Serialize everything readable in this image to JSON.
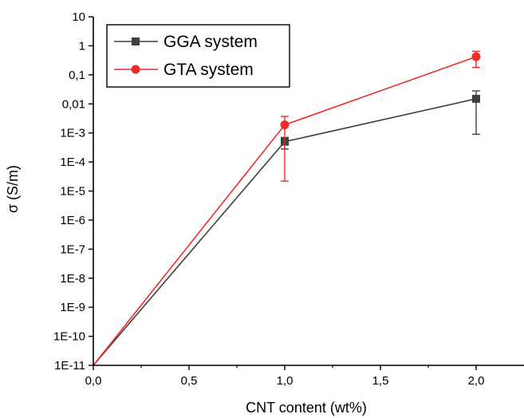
{
  "chart_data": {
    "type": "line",
    "title": "",
    "xlabel": "CNT content (wt%)",
    "ylabel": "σ (S/m)",
    "xlim": [
      0.0,
      2.25
    ],
    "ylim": [
      1e-11,
      10
    ],
    "yscale": "log",
    "x_ticks": [
      0.0,
      0.5,
      1.0,
      1.5,
      2.0
    ],
    "x_tick_labels": [
      "0,0",
      "0,5",
      "1,0",
      "1,5",
      "2,0"
    ],
    "y_ticks": [
      1e-11,
      1e-10,
      1e-09,
      1e-08,
      1e-07,
      1e-06,
      1e-05,
      0.0001,
      0.001,
      0.01,
      0.1,
      1,
      10
    ],
    "y_tick_labels": [
      "1E-11",
      "1E-10",
      "1E-9",
      "1E-8",
      "1E-7",
      "1E-6",
      "1E-5",
      "1E-4",
      "1E-3",
      "0,01",
      "0,1",
      "1",
      "10"
    ],
    "grid": false,
    "legend_position": "top-left",
    "series": [
      {
        "name": "GGA system",
        "color": "#3f3f3f",
        "marker": "square",
        "x": [
          0.0,
          1.0,
          2.0
        ],
        "y": [
          1e-11,
          0.0005,
          0.015
        ],
        "err_low": [
          null,
          0.00028,
          0.0009
        ],
        "err_high": [
          null,
          0.0007,
          0.028
        ]
      },
      {
        "name": "GTA system",
        "color": "#ee2b2b",
        "marker": "circle",
        "x": [
          0.0,
          1.0,
          2.0
        ],
        "y": [
          1e-11,
          0.0019,
          0.42
        ],
        "err_low": [
          null,
          2.2e-05,
          0.18
        ],
        "err_high": [
          null,
          0.0037,
          0.65
        ]
      }
    ]
  }
}
